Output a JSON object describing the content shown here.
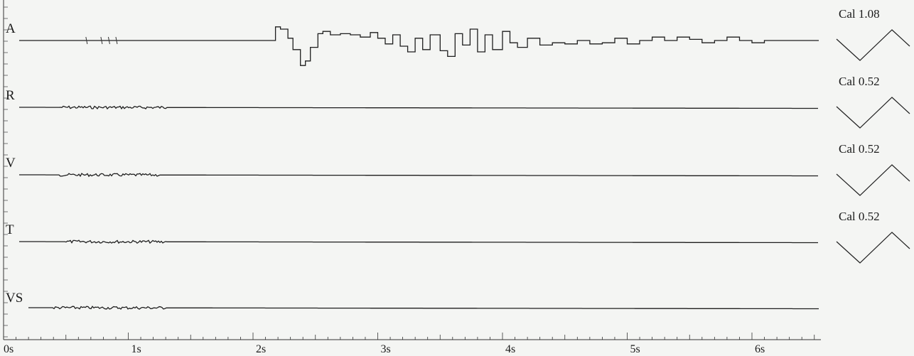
{
  "chart_data": {
    "type": "line",
    "title": "",
    "xlabel": "",
    "ylabel": "",
    "xlim": [
      0,
      6.55
    ],
    "x_ticks": [
      "0s",
      "1s",
      "2s",
      "3s",
      "4s",
      "5s",
      "6s"
    ],
    "grid": false,
    "series": [
      {
        "name": "A",
        "calibration": "Cal 1.08",
        "events": [
          [
            0.66,
            0.68,
            "tick"
          ],
          [
            0.78,
            0.8,
            "tick"
          ],
          [
            0.84,
            0.86,
            "tick"
          ],
          [
            0.9,
            0.92,
            "tick"
          ]
        ],
        "x": [
          0,
          2.1,
          2.18,
          2.22,
          2.28,
          2.32,
          2.38,
          2.42,
          2.46,
          2.52,
          2.56,
          2.62,
          2.7,
          2.78,
          2.86,
          2.94,
          3.0,
          3.06,
          3.12,
          3.18,
          3.24,
          3.3,
          3.36,
          3.42,
          3.5,
          3.56,
          3.62,
          3.68,
          3.74,
          3.8,
          3.86,
          3.92,
          4.0,
          4.06,
          4.12,
          4.2,
          4.3,
          4.4,
          4.5,
          4.6,
          4.7,
          4.8,
          4.9,
          5.0,
          5.1,
          5.2,
          5.3,
          5.4,
          5.5,
          5.6,
          5.7,
          5.8,
          5.9,
          6.0,
          6.1,
          6.2,
          6.3,
          6.41
        ],
        "y": [
          0,
          0,
          0.12,
          0.1,
          0.02,
          -0.08,
          -0.22,
          -0.18,
          -0.06,
          0.06,
          0.08,
          0.05,
          0.06,
          0.05,
          0.03,
          0.07,
          0.02,
          -0.03,
          0.05,
          -0.05,
          -0.1,
          0.02,
          -0.08,
          0.05,
          -0.09,
          -0.14,
          0.06,
          -0.04,
          0.1,
          -0.1,
          0.05,
          -0.08,
          0.08,
          -0.02,
          -0.06,
          0.02,
          -0.04,
          -0.02,
          -0.03,
          0.0,
          -0.03,
          -0.02,
          0.02,
          -0.03,
          0.0,
          0.03,
          0.0,
          0.03,
          0.01,
          -0.02,
          0.0,
          0.03,
          0.0,
          -0.02,
          0,
          0,
          0,
          0
        ]
      },
      {
        "name": "R",
        "calibration": "Cal 0.52",
        "noise_window": [
          0.45,
          1.3
        ]
      },
      {
        "name": "V",
        "calibration": "Cal 0.52",
        "noise_window": [
          0.45,
          1.25
        ]
      },
      {
        "name": "T",
        "calibration": "Cal 0.52",
        "noise_window": [
          0.5,
          1.3
        ]
      },
      {
        "name": "VS",
        "calibration": "",
        "noise_window": [
          0.4,
          1.3
        ]
      }
    ]
  },
  "colors": {
    "trace": "#1e1e1e",
    "background": "#f4f5f3"
  }
}
